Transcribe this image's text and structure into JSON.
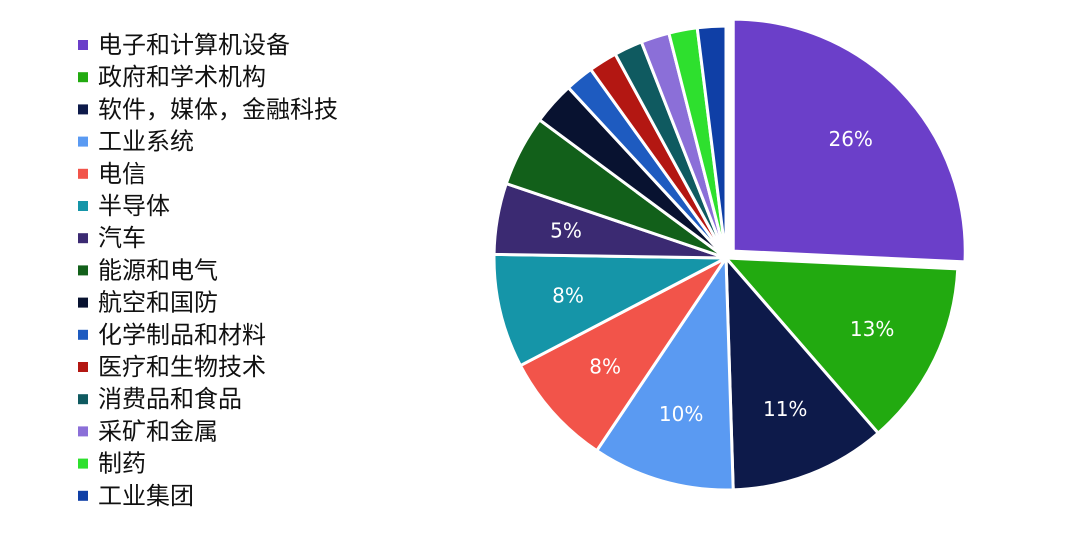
{
  "chart_data": {
    "type": "pie",
    "legend_position": "left",
    "categories": [
      "电子和计算机设备",
      "政府和学术机构",
      "软件，媒体，金融科技",
      "工业系统",
      "电信",
      "半导体",
      "汽车",
      "能源和电气",
      "航空和国防",
      "化学制品和材料",
      "医疗和生物技术",
      "消费品和食品",
      "采矿和金属",
      "制药",
      "工业集团"
    ],
    "values": [
      26,
      13,
      11,
      10,
      8,
      8,
      5,
      5,
      3,
      2,
      2,
      2,
      2,
      2,
      2
    ],
    "data_labels": [
      "26%",
      "13%",
      "11%",
      "10%",
      "8%",
      "8%",
      "5%",
      "",
      "",
      "",
      "",
      "",
      "",
      "",
      ""
    ],
    "colors": [
      "#6B3FC9",
      "#22AA10",
      "#0D1A4A",
      "#5A9AF2",
      "#F2544A",
      "#1595A8",
      "#3B2A72",
      "#12601A",
      "#081230",
      "#1E5BC0",
      "#B31712",
      "#0F5A60",
      "#8B6FD8",
      "#2EE02E",
      "#0F3FA6"
    ],
    "exploded_index": 0
  }
}
